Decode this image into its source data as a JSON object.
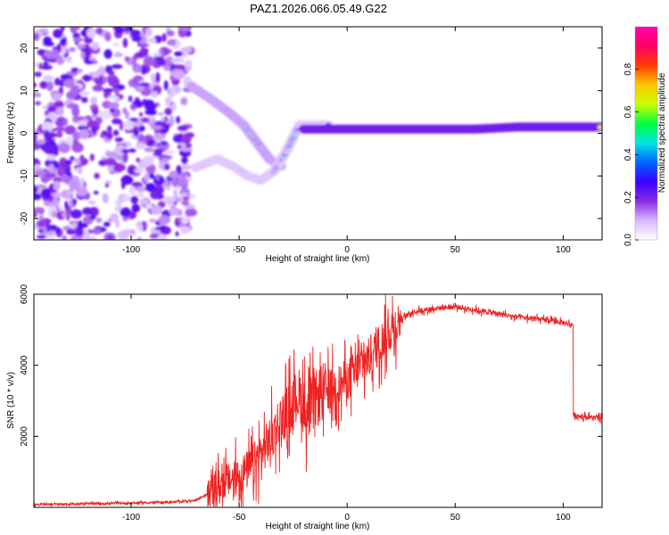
{
  "chart_data": [
    {
      "type": "heatmap",
      "title": "PAZ1.2026.066.05.49.G22",
      "xlabel": "Height of straight line (km)",
      "ylabel": "Frequency (Hz)",
      "xlim": [
        -145,
        118
      ],
      "ylim": [
        -25,
        25
      ],
      "xticks": [
        -100,
        -50,
        0,
        50,
        100
      ],
      "yticks": [
        -20,
        -10,
        0,
        10,
        20
      ],
      "colorbar": {
        "label": "Normalized spectral amplitude",
        "range": [
          0,
          1
        ],
        "ticks": [
          0.0,
          0.2,
          0.4,
          0.6,
          0.8
        ],
        "colors": [
          "#ffffff",
          "#d8b8ff",
          "#8a2be2",
          "#3a00ff",
          "#0064ff",
          "#00e5e5",
          "#00ff40",
          "#c8ff00",
          "#ffc800",
          "#ff3c00",
          "#ff0064",
          "#ff00aa"
        ]
      },
      "features": [
        {
          "name": "noise cloud",
          "x_range": [
            -145,
            -72
          ],
          "y_range": [
            -25,
            25
          ],
          "amplitude": "0.05-0.25"
        },
        {
          "name": "upper branch",
          "points": [
            [
              -72,
              11
            ],
            [
              -63,
              8
            ],
            [
              -55,
              5
            ],
            [
              -48,
              2
            ],
            [
              -42,
              -2
            ],
            [
              -36,
              -6
            ],
            [
              -30,
              -8
            ]
          ],
          "amplitude": "0.3-0.6"
        },
        {
          "name": "lower branch",
          "points": [
            [
              -70,
              -8
            ],
            [
              -60,
              -6
            ],
            [
              -52,
              -8
            ],
            [
              -46,
              -10
            ],
            [
              -40,
              -11
            ],
            [
              -34,
              -9
            ],
            [
              -28,
              -4
            ],
            [
              -22,
              2
            ],
            [
              -15,
              2
            ],
            [
              -8,
              2
            ]
          ],
          "amplitude": "0.2-0.45"
        },
        {
          "name": "main tone",
          "points": [
            [
              -20,
              1
            ],
            [
              0,
              1
            ],
            [
              20,
              1
            ],
            [
              40,
              1
            ],
            [
              60,
              1
            ],
            [
              80,
              1.5
            ],
            [
              100,
              1.5
            ],
            [
              118,
              1.5
            ]
          ],
          "amplitude": "0.6-1.0"
        }
      ]
    },
    {
      "type": "line",
      "xlabel": "Height of straight line (km)",
      "ylabel": "SNR (10 * v/v)",
      "xlim": [
        -145,
        118
      ],
      "ylim": [
        0,
        6000
      ],
      "xticks": [
        -100,
        -50,
        0,
        50,
        100
      ],
      "yticks": [
        2000,
        4000,
        6000
      ],
      "series": [
        {
          "name": "SNR",
          "color": "#ee2222",
          "x": [
            -145,
            -120,
            -100,
            -80,
            -70,
            -64,
            -60,
            -55,
            -50,
            -45,
            -40,
            -35,
            -32,
            -28,
            -25,
            -22,
            -20,
            -18,
            -15,
            -12,
            -10,
            -5,
            0,
            5,
            10,
            15,
            20,
            25,
            30,
            40,
            50,
            60,
            70,
            80,
            88,
            95,
            100,
            104,
            105,
            110,
            118
          ],
          "y": [
            80,
            100,
            120,
            150,
            200,
            400,
            600,
            750,
            900,
            1100,
            1500,
            2000,
            2400,
            2700,
            3000,
            3200,
            2800,
            2600,
            3000,
            3200,
            3300,
            3400,
            3600,
            3900,
            4200,
            4600,
            5000,
            5300,
            5500,
            5600,
            5650,
            5550,
            5450,
            5350,
            5300,
            5250,
            5200,
            5150,
            2600,
            2550,
            2500
          ]
        }
      ]
    }
  ]
}
